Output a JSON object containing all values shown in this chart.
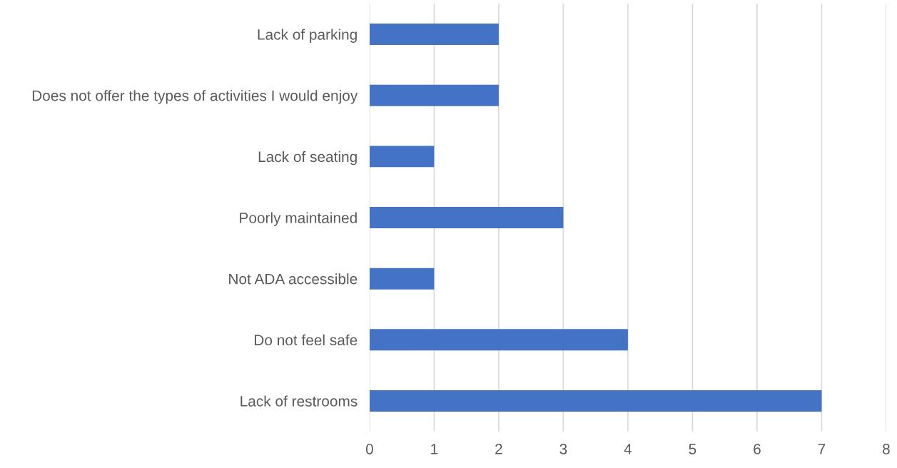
{
  "chart_data": {
    "type": "bar",
    "orientation": "horizontal",
    "categories": [
      "Lack of parking",
      "Does not offer the types of activities I would enjoy",
      "Lack of seating",
      "Poorly maintained",
      "Not ADA accessible",
      "Do not feel safe",
      "Lack of restrooms"
    ],
    "values": [
      2,
      2,
      1,
      3,
      1,
      4,
      7
    ],
    "color": "#4472c4",
    "xlim": [
      0,
      8
    ],
    "xticks": [
      0,
      1,
      2,
      3,
      4,
      5,
      6,
      7,
      8
    ],
    "grid": "x",
    "legend": false
  }
}
